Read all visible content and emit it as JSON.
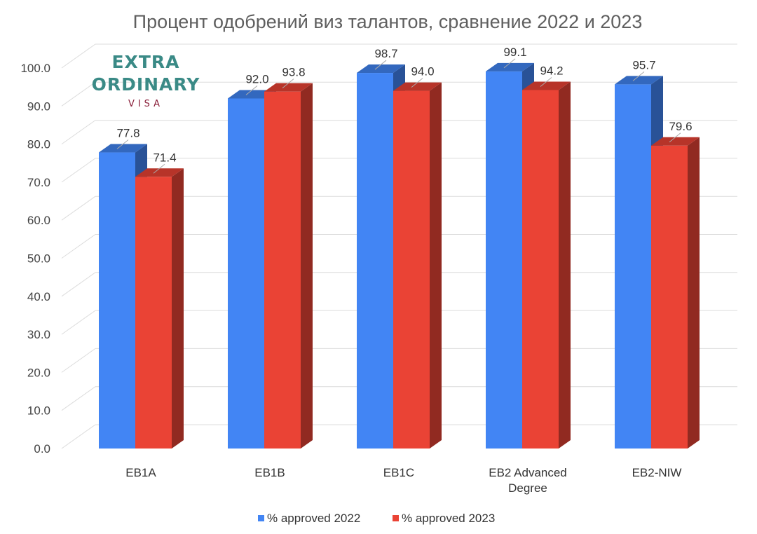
{
  "chart_data": {
    "type": "bar",
    "title": "Процент одобрений виз талантов, сравнение 2022 и 2023",
    "xlabel": "",
    "ylabel": "",
    "ylim": [
      0,
      100
    ],
    "yticks": [
      "0.0",
      "10.0",
      "20.0",
      "30.0",
      "40.0",
      "50.0",
      "60.0",
      "70.0",
      "80.0",
      "90.0",
      "100.0"
    ],
    "categories": [
      [
        "EB1A"
      ],
      [
        "EB1B"
      ],
      [
        "EB1C"
      ],
      [
        "EB2 Advanced",
        "Degree"
      ],
      [
        "EB2-NIW"
      ]
    ],
    "series": [
      {
        "name": "% approved 2022",
        "color": "#4285f4",
        "values": [
          77.8,
          92.0,
          98.7,
          99.1,
          95.7
        ],
        "labels": [
          "77.8",
          "92.0",
          "98.7",
          "99.1",
          "95.7"
        ]
      },
      {
        "name": "% approved 2023",
        "color": "#ea4335",
        "values": [
          71.4,
          93.8,
          94.0,
          94.2,
          79.6
        ],
        "labels": [
          "71.4",
          "93.8",
          "94.0",
          "94.2",
          "79.6"
        ]
      }
    ],
    "grid": true,
    "legend": "bottom",
    "style": "3d-column"
  },
  "logo": {
    "line1": "EXTRA",
    "line2": "ORDINARY",
    "line3": "VISA"
  }
}
